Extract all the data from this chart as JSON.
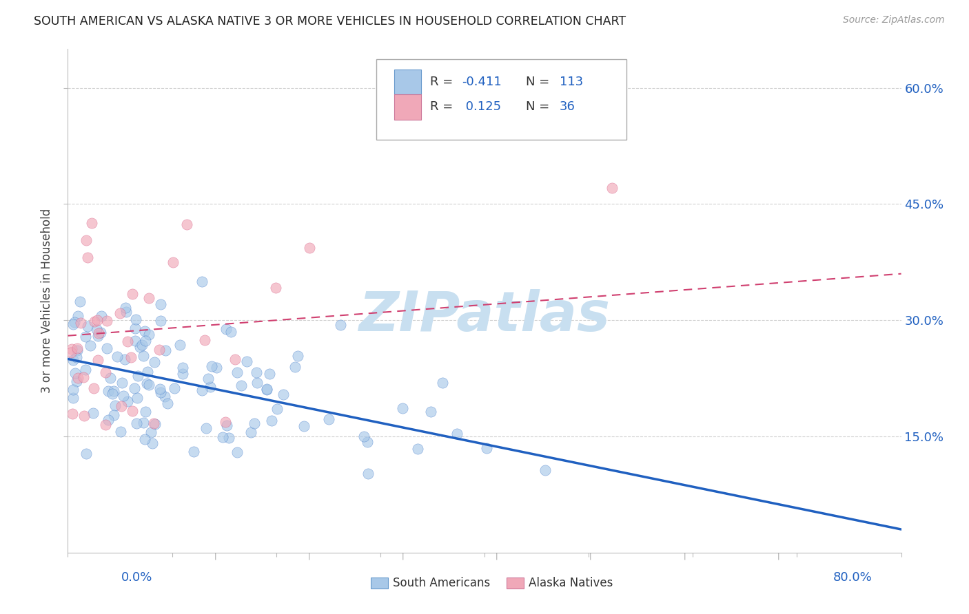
{
  "title": "SOUTH AMERICAN VS ALASKA NATIVE 3 OR MORE VEHICLES IN HOUSEHOLD CORRELATION CHART",
  "source": "Source: ZipAtlas.com",
  "ylabel": "3 or more Vehicles in Household",
  "legend_label1": "South Americans",
  "legend_label2": "Alaska Natives",
  "blue_color": "#a8c8e8",
  "pink_color": "#f0a8b8",
  "blue_line_color": "#2060c0",
  "pink_line_color": "#d04070",
  "watermark": "ZIPatlas",
  "watermark_color": "#c8dff0",
  "R_blue": -0.411,
  "N_blue": 113,
  "R_pink": 0.125,
  "N_pink": 36,
  "xmin": 0.0,
  "xmax": 80.0,
  "ymin": 0.0,
  "ymax": 65.0,
  "blue_line_x0": 0.0,
  "blue_line_y0": 25.0,
  "blue_line_x1": 80.0,
  "blue_line_y1": 3.0,
  "pink_line_x0": 0.0,
  "pink_line_y0": 28.0,
  "pink_line_x1": 80.0,
  "pink_line_y1": 36.0
}
